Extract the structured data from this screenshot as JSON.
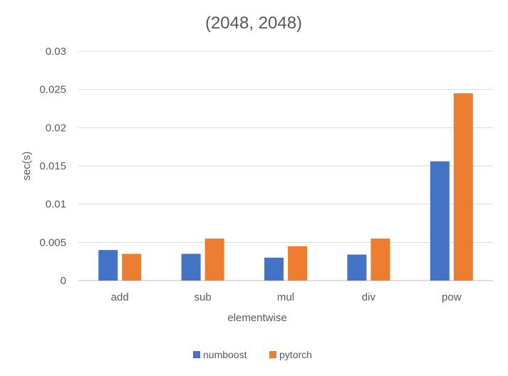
{
  "chart_data": {
    "type": "bar",
    "title": "(2048, 2048)",
    "xlabel": "elementwise",
    "ylabel": "sec(s)",
    "categories": [
      "add",
      "sub",
      "mul",
      "div",
      "pow"
    ],
    "series": [
      {
        "name": "numboost",
        "color": "#4472C4",
        "values": [
          0.004,
          0.0035,
          0.003,
          0.0034,
          0.0156
        ]
      },
      {
        "name": "pytorch",
        "color": "#ED7D31",
        "values": [
          0.0035,
          0.0055,
          0.0045,
          0.0055,
          0.0245
        ]
      }
    ],
    "ylim": [
      0,
      0.03
    ],
    "yticks": [
      "0",
      "0.005",
      "0.01",
      "0.015",
      "0.02",
      "0.025",
      "0.03"
    ],
    "ytick_values": [
      0,
      0.005,
      0.01,
      0.015,
      0.02,
      0.025,
      0.03
    ],
    "grid": true,
    "legend_position": "bottom"
  }
}
